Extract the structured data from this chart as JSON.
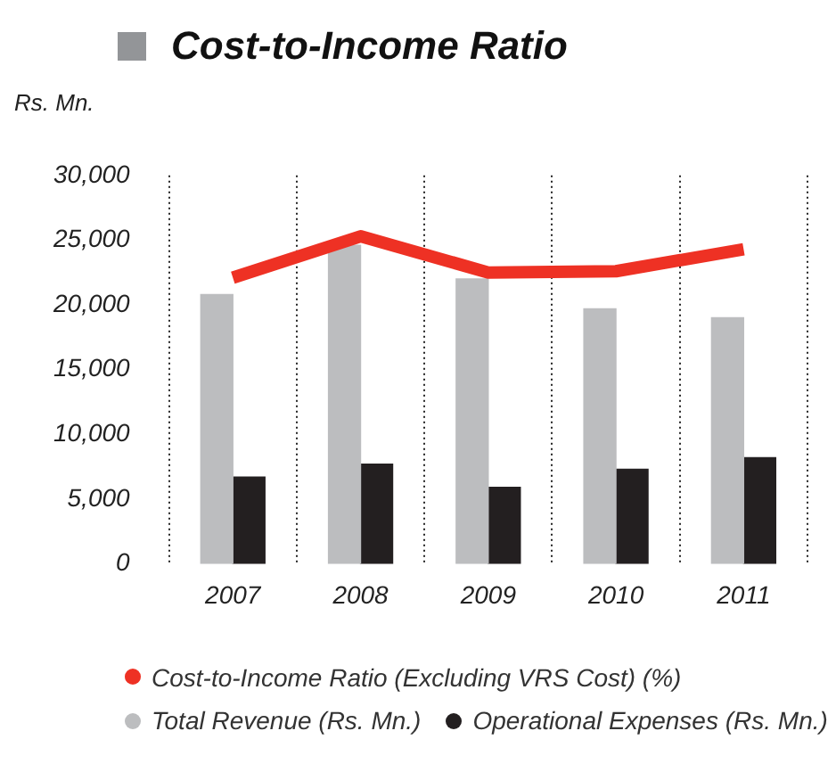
{
  "chart_data": {
    "type": "bar",
    "title": "Cost-to-Income Ratio",
    "ylabel": "Rs. Mn.",
    "categories": [
      "2007",
      "2008",
      "2009",
      "2010",
      "2011"
    ],
    "series": [
      {
        "name": "Cost-to-Income Ratio (Excluding VRS Cost) (%)",
        "type": "line",
        "color": "#ee3124",
        "values": [
          22100,
          25300,
          22500,
          22600,
          24300
        ]
      },
      {
        "name": "Total Revenue (Rs. Mn.)",
        "color": "#bcbdbf",
        "values": [
          20800,
          24600,
          22000,
          19700,
          19000
        ]
      },
      {
        "name": "Operational Expenses (Rs. Mn.)",
        "color": "#231f20",
        "values": [
          6700,
          7700,
          5900,
          7300,
          8200
        ]
      }
    ],
    "ylim": [
      0,
      30000
    ],
    "yticks": [
      0,
      {
        "value": 5000,
        "label": "5,000"
      },
      {
        "value": 10000,
        "label": "10,000"
      },
      {
        "value": 15000,
        "label": "15,000"
      },
      {
        "value": 20000,
        "label": "20,000"
      },
      {
        "value": 25000,
        "label": "25,000"
      },
      {
        "value": 30000,
        "label": "30,000"
      }
    ],
    "grid": "x",
    "legend": "bottom",
    "marker": "none"
  }
}
